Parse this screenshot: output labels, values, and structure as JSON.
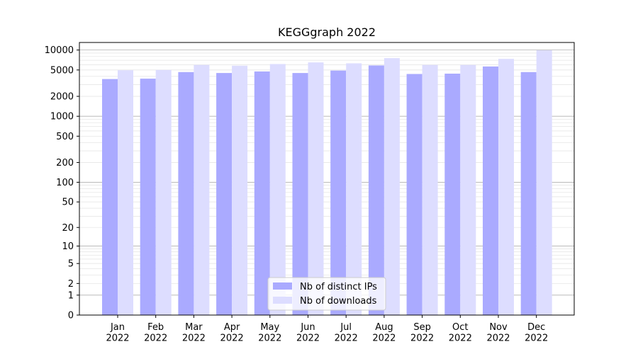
{
  "chart_data": {
    "type": "bar",
    "title": "KEGGgraph 2022",
    "xlabel": "",
    "ylabel": "",
    "yscale": "log1p",
    "ylim": [
      0,
      13000
    ],
    "y_ticks": [
      0,
      1,
      2,
      5,
      10,
      20,
      50,
      100,
      200,
      500,
      1000,
      2000,
      5000,
      10000
    ],
    "categories": [
      "Jan\n2022",
      "Feb\n2022",
      "Mar\n2022",
      "Apr\n2022",
      "May\n2022",
      "Jun\n2022",
      "Jul\n2022",
      "Aug\n2022",
      "Sep\n2022",
      "Oct\n2022",
      "Nov\n2022",
      "Dec\n2022"
    ],
    "series": [
      {
        "name": "Nb of distinct IPs",
        "color": "#aaaaff",
        "values": [
          3650,
          3700,
          4650,
          4500,
          4750,
          4500,
          4900,
          5850,
          4350,
          4400,
          5650,
          4650
        ]
      },
      {
        "name": "Nb of downloads",
        "color": "#ddddff",
        "values": [
          4950,
          5000,
          5950,
          5800,
          6150,
          6500,
          6300,
          7550,
          5950,
          5950,
          7350,
          9900
        ]
      }
    ],
    "grid": true,
    "legend_position": "lower-center"
  }
}
